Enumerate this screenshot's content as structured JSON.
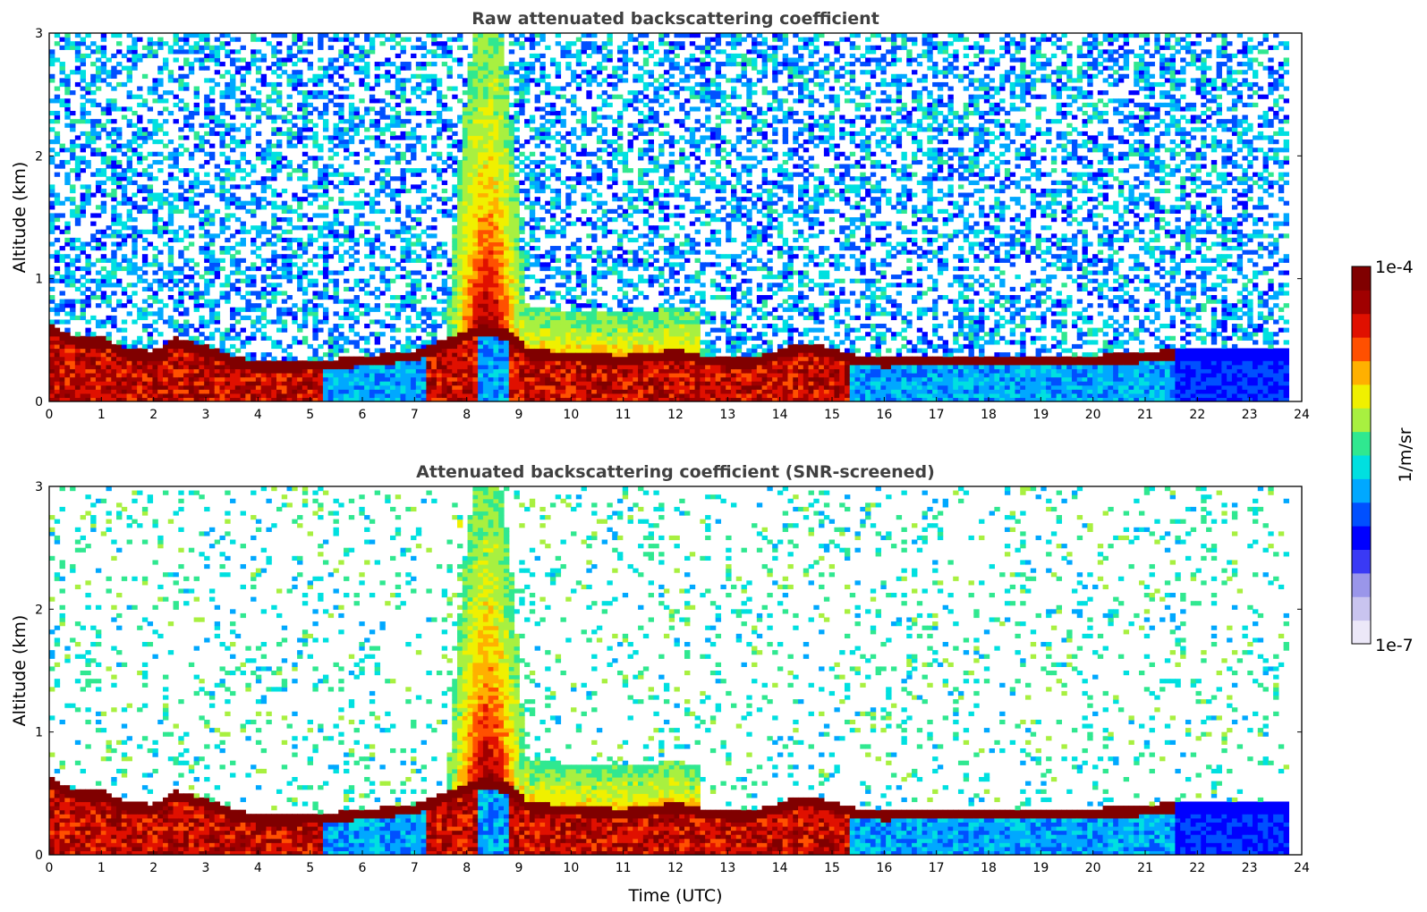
{
  "colors": {
    "title": "#404040",
    "axis": "#000000",
    "colormap": [
      "#ece8f8",
      "#c9c4ef",
      "#9a96ea",
      "#3a3af5",
      "#0000ff",
      "#0050ff",
      "#00a8ff",
      "#00e0e0",
      "#30e890",
      "#a8f040",
      "#f0f000",
      "#ffb000",
      "#ff5000",
      "#e01000",
      "#a00000",
      "#800000"
    ]
  },
  "chart_data": [
    {
      "type": "heatmap",
      "title": "Raw attenuated backscattering coefficient",
      "xlabel": "",
      "ylabel": "Altitude (km)",
      "xlim": [
        0,
        24
      ],
      "ylim": [
        0,
        3
      ],
      "x_ticks": [
        "0",
        "1",
        "2",
        "3",
        "4",
        "5",
        "6",
        "7",
        "8",
        "9",
        "10",
        "11",
        "12",
        "13",
        "14",
        "15",
        "16",
        "17",
        "18",
        "19",
        "20",
        "21",
        "22",
        "23",
        "24"
      ],
      "y_ticks": [
        "0",
        "1",
        "2",
        "3"
      ],
      "data_extent_x": [
        0,
        23.75
      ],
      "boundary_layer_top_km": {
        "x": [
          0,
          0.5,
          1,
          1.5,
          2,
          2.4,
          3,
          3.5,
          4,
          4.5,
          5,
          5.5,
          6,
          6.5,
          7,
          7.5,
          8,
          8.3,
          8.8,
          9.2,
          10,
          11,
          11.5,
          12,
          12.5,
          13,
          13.5,
          14,
          14.5,
          15,
          15.5,
          16,
          17,
          18,
          19,
          20,
          21,
          21.5
        ],
        "y": [
          0.55,
          0.45,
          0.45,
          0.35,
          0.33,
          0.45,
          0.38,
          0.3,
          0.24,
          0.24,
          0.26,
          0.27,
          0.29,
          0.31,
          0.33,
          0.42,
          0.5,
          0.55,
          0.5,
          0.35,
          0.32,
          0.3,
          0.32,
          0.35,
          0.3,
          0.28,
          0.28,
          0.35,
          0.4,
          0.35,
          0.3,
          0.28,
          0.3,
          0.3,
          0.3,
          0.3,
          0.32,
          0.35
        ]
      }
    },
    {
      "type": "heatmap",
      "title": "Attenuated backscattering coefficient (SNR-screened)",
      "xlabel": "Time (UTC)",
      "ylabel": "Altitude (km)",
      "xlim": [
        0,
        24
      ],
      "ylim": [
        0,
        3
      ],
      "x_ticks": [
        "0",
        "1",
        "2",
        "3",
        "4",
        "5",
        "6",
        "7",
        "8",
        "9",
        "10",
        "11",
        "12",
        "13",
        "14",
        "15",
        "16",
        "17",
        "18",
        "19",
        "20",
        "21",
        "22",
        "23",
        "24"
      ],
      "y_ticks": [
        "0",
        "1",
        "2",
        "3"
      ],
      "data_extent_x": [
        0,
        23.75
      ]
    }
  ],
  "colorbar": {
    "label": "1/m/sr",
    "max_label": "1e-4",
    "min_label": "1e-7",
    "scale": "log",
    "range": [
      1e-07,
      0.0001
    ]
  }
}
